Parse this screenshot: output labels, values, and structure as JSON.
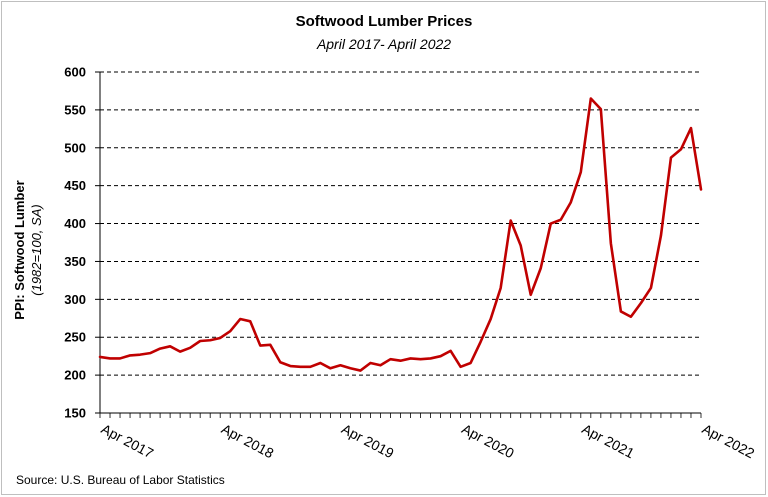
{
  "chart_data": {
    "type": "line",
    "title": "Softwood Lumber Prices",
    "subtitle": "April 2017- April 2022",
    "ylabel": "PPI: Softwood Lumber",
    "ylabel_sub": "(1982=100, SA)",
    "xlabel": "",
    "ylim": [
      150,
      600
    ],
    "yticks": [
      150,
      200,
      250,
      300,
      350,
      400,
      450,
      500,
      550,
      600
    ],
    "xtick_labels": [
      "Apr 2017",
      "Apr 2018",
      "Apr 2019",
      "Apr 2020",
      "Apr 2021",
      "Apr 2022"
    ],
    "xtick_index": [
      0,
      12,
      24,
      36,
      48,
      60
    ],
    "grid": "horizontal dashed",
    "series": [
      {
        "name": "PPI: Softwood Lumber",
        "color": "#c00000",
        "values": [
          224,
          222,
          222,
          226,
          227,
          229,
          235,
          238,
          231,
          236,
          245,
          246,
          249,
          258,
          274,
          271,
          239,
          240,
          217,
          212,
          211,
          211,
          216,
          209,
          213,
          209,
          206,
          216,
          213,
          221,
          219,
          222,
          221,
          222,
          225,
          232,
          211,
          216,
          244,
          274,
          315,
          404,
          371,
          306,
          341,
          400,
          405,
          428,
          468,
          565,
          551,
          374,
          284,
          277,
          295,
          315,
          384,
          487,
          498,
          526,
          445
        ]
      }
    ]
  },
  "source": "Source: U.S. Bureau of Labor Statistics"
}
